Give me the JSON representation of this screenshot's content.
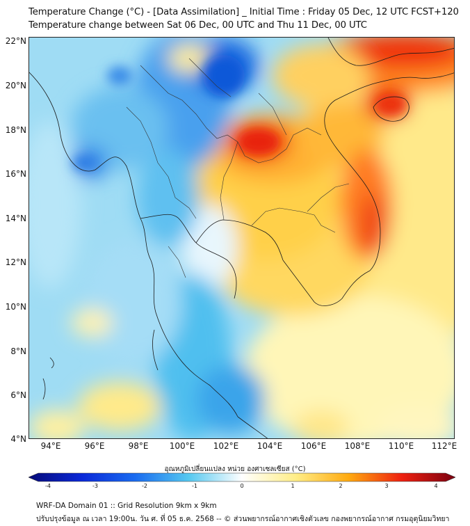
{
  "header": {
    "title_line1": "Temperature Change (°C) - [Data Assimilation] _ Initial Time : Friday 05 Dec, 12 UTC FCST+120",
    "title_line2": "Temperature change between Sat 06 Dec, 00 UTC and Thu 11 Dec, 00 UTC"
  },
  "map": {
    "lat_labels": [
      "22°N",
      "20°N",
      "18°N",
      "16°N",
      "14°N",
      "12°N",
      "10°N",
      "8°N",
      "6°N",
      "4°N"
    ],
    "lon_labels": [
      "94°E",
      "96°E",
      "98°E",
      "100°E",
      "102°E",
      "104°E",
      "106°E",
      "108°E",
      "110°E",
      "112°E"
    ],
    "extent": {
      "lon_min": 93,
      "lon_max": 112.5,
      "lat_min": 4,
      "lat_max": 22.2
    }
  },
  "colorbar": {
    "title": "อุณหภูมิเปลี่ยนแปลง หน่วย องศาเซลเซียส (°C)",
    "range": [
      -4,
      4
    ],
    "tick_labels": [
      "-4",
      "-3",
      "-2",
      "-1",
      "0",
      "1",
      "2",
      "3",
      "4"
    ],
    "colors": {
      "neg4": "#060a78",
      "neg3": "#0a28d8",
      "neg2": "#1a6cf0",
      "neg1": "#55c8f0",
      "zero": "#ffffff",
      "pos1": "#ffee88",
      "pos2": "#ffaa10",
      "pos3": "#ee2010",
      "pos4": "#7a0010"
    }
  },
  "footer": {
    "line1": "WRF-DA Domain 01 :: Grid Resolution 9km x 9km",
    "line2": "ปรับปรุงข้อมูล ณ เวลา 19:00น. วัน ศ. ที่ 05 ธ.ค. 2568 -- © ส่วนพยากรณ์อากาศเชิงตัวเลข กองพยากรณ์อากาศ กรมอุตุนิยมวิทยา"
  }
}
